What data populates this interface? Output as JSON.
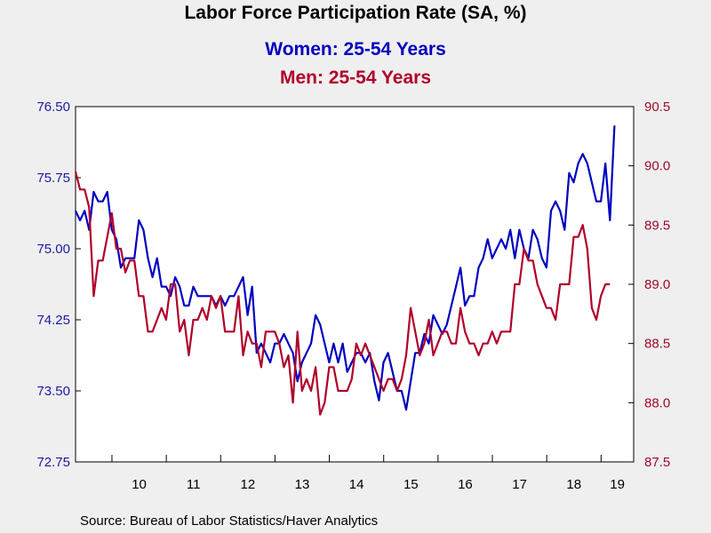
{
  "colors": {
    "background": "#efefef",
    "plot_bg": "#ffffff",
    "women": "#0000c0",
    "men": "#b0002a",
    "left_axis_text": "#1a1aa6",
    "right_axis_text": "#9e0a2a"
  },
  "chart_data": {
    "type": "line",
    "title": "Labor Force Participation Rate (SA, %)",
    "x_tick_labels": [
      "10",
      "11",
      "12",
      "13",
      "14",
      "15",
      "16",
      "17",
      "18",
      "19"
    ],
    "x_range": [
      2009.33,
      2019.6
    ],
    "y_left": {
      "ylim": [
        72.75,
        76.5
      ],
      "ticks": [
        "72.75",
        "73.50",
        "74.25",
        "75.00",
        "75.75",
        "76.50"
      ]
    },
    "y_right": {
      "ylim": [
        87.5,
        90.5
      ],
      "ticks": [
        "87.5",
        "88.0",
        "88.5",
        "89.0",
        "89.5",
        "90.0",
        "90.5"
      ]
    },
    "grid": false,
    "legend": "top-center (as subtitles)",
    "series": [
      {
        "name": "Women: 25-54 Years",
        "axis": "left",
        "color": "#0000c0",
        "x_start": 2009.33,
        "x_step": 0.08333,
        "values": [
          75.4,
          75.3,
          75.4,
          75.2,
          75.6,
          75.5,
          75.5,
          75.6,
          75.2,
          75.1,
          74.8,
          74.9,
          74.9,
          74.9,
          75.3,
          75.2,
          74.9,
          74.7,
          74.9,
          74.6,
          74.6,
          74.5,
          74.7,
          74.6,
          74.4,
          74.4,
          74.6,
          74.5,
          74.5,
          74.5,
          74.5,
          74.4,
          74.5,
          74.4,
          74.5,
          74.5,
          74.6,
          74.7,
          74.3,
          74.6,
          73.9,
          74.0,
          73.9,
          73.8,
          74.0,
          74.0,
          74.1,
          74.0,
          73.9,
          73.6,
          73.8,
          73.9,
          74.0,
          74.3,
          74.2,
          74.0,
          73.8,
          74.0,
          73.8,
          74.0,
          73.7,
          73.8,
          73.9,
          73.9,
          73.8,
          73.9,
          73.6,
          73.4,
          73.8,
          73.9,
          73.7,
          73.5,
          73.5,
          73.3,
          73.6,
          73.9,
          73.9,
          74.1,
          74.0,
          74.3,
          74.2,
          74.1,
          74.2,
          74.4,
          74.6,
          74.8,
          74.4,
          74.5,
          74.5,
          74.8,
          74.9,
          75.1,
          74.9,
          75.0,
          75.1,
          75.0,
          75.2,
          74.9,
          75.2,
          75.0,
          74.9,
          75.2,
          75.1,
          74.9,
          74.8,
          75.4,
          75.5,
          75.4,
          75.2,
          75.8,
          75.7,
          75.9,
          76.0,
          75.9,
          75.7,
          75.5,
          75.5,
          75.9,
          75.3,
          76.3
        ]
      },
      {
        "name": "Men: 25-54 Years",
        "axis": "right",
        "color": "#b0002a",
        "x_start": 2009.33,
        "x_step": 0.08333,
        "values": [
          89.95,
          89.8,
          89.8,
          89.65,
          88.9,
          89.2,
          89.2,
          89.4,
          89.6,
          89.3,
          89.3,
          89.1,
          89.2,
          89.2,
          88.9,
          88.9,
          88.6,
          88.6,
          88.7,
          88.8,
          88.7,
          89.0,
          89.0,
          88.6,
          88.7,
          88.4,
          88.7,
          88.7,
          88.8,
          88.7,
          88.9,
          88.8,
          88.9,
          88.6,
          88.6,
          88.6,
          88.9,
          88.4,
          88.6,
          88.5,
          88.5,
          88.3,
          88.6,
          88.6,
          88.6,
          88.5,
          88.3,
          88.4,
          88.0,
          88.6,
          88.1,
          88.2,
          88.1,
          88.3,
          87.9,
          88.0,
          88.3,
          88.3,
          88.1,
          88.1,
          88.1,
          88.2,
          88.5,
          88.4,
          88.5,
          88.4,
          88.3,
          88.2,
          88.1,
          88.2,
          88.2,
          88.1,
          88.2,
          88.4,
          88.8,
          88.6,
          88.4,
          88.5,
          88.7,
          88.4,
          88.5,
          88.6,
          88.6,
          88.5,
          88.5,
          88.8,
          88.6,
          88.5,
          88.5,
          88.4,
          88.5,
          88.5,
          88.6,
          88.5,
          88.6,
          88.6,
          88.6,
          89.0,
          89.0,
          89.3,
          89.2,
          89.2,
          89.0,
          88.9,
          88.8,
          88.8,
          88.7,
          89.0,
          89.0,
          89.0,
          89.4,
          89.4,
          89.5,
          89.3,
          88.8,
          88.7,
          88.9,
          89.0,
          89.0
        ]
      }
    ]
  },
  "subtitle_women": "Women: 25-54 Years",
  "subtitle_men": "Men: 25-54 Years",
  "source": "Source:  Bureau of Labor Statistics/Haver Analytics"
}
